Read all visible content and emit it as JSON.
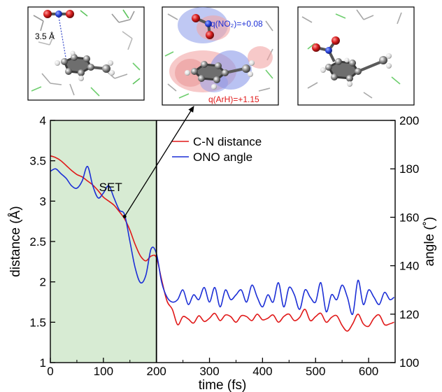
{
  "panels": [
    {
      "label": "3.5 Å"
    },
    {
      "label_top": "q(NO₂)=+0.08",
      "label_bottom": "q(ArH)=+1.15",
      "color_top": "#1c2fd6",
      "color_bottom": "#e01818"
    },
    {}
  ],
  "chart_data": {
    "type": "line",
    "xlabel": "time (fs)",
    "ylabel_left": "distance (Å)",
    "ylabel_right": "angle (˚)",
    "xlim": [
      0,
      650
    ],
    "ylim_left": [
      1,
      4
    ],
    "ylim_right": [
      100,
      200
    ],
    "xticks": [
      0,
      100,
      200,
      300,
      400,
      500,
      600
    ],
    "yticks_left": [
      1,
      1.5,
      2,
      2.5,
      3,
      3.5,
      4
    ],
    "yticks_right": [
      100,
      120,
      140,
      160,
      180,
      200
    ],
    "legend_position": "top-right",
    "shaded_region": {
      "x": [
        0,
        200
      ],
      "color": "#d7ebd3"
    },
    "annotation": {
      "text": "SET",
      "point_x": 140,
      "point_y": 2.81
    },
    "series": [
      {
        "name": "C-N distance",
        "axis": "left",
        "color": "#e01818",
        "x": [
          0,
          10,
          20,
          30,
          40,
          50,
          60,
          70,
          80,
          90,
          100,
          110,
          120,
          130,
          140,
          150,
          160,
          170,
          180,
          190,
          200,
          210,
          220,
          230,
          240,
          250,
          260,
          270,
          280,
          290,
          300,
          310,
          320,
          330,
          340,
          350,
          360,
          370,
          380,
          390,
          400,
          410,
          420,
          430,
          440,
          450,
          460,
          470,
          480,
          490,
          500,
          510,
          520,
          530,
          540,
          550,
          560,
          570,
          580,
          590,
          600,
          610,
          620,
          630,
          640,
          648
        ],
        "y": [
          3.56,
          3.54,
          3.5,
          3.44,
          3.38,
          3.33,
          3.3,
          3.25,
          3.2,
          3.13,
          3.05,
          3.0,
          2.95,
          2.87,
          2.78,
          2.64,
          2.46,
          2.32,
          2.26,
          2.32,
          2.3,
          2.02,
          1.76,
          1.66,
          1.47,
          1.57,
          1.54,
          1.49,
          1.58,
          1.51,
          1.55,
          1.61,
          1.52,
          1.59,
          1.57,
          1.5,
          1.58,
          1.57,
          1.52,
          1.6,
          1.53,
          1.55,
          1.59,
          1.5,
          1.57,
          1.6,
          1.52,
          1.56,
          1.66,
          1.52,
          1.57,
          1.61,
          1.5,
          1.56,
          1.58,
          1.46,
          1.39,
          1.48,
          1.6,
          1.48,
          1.45,
          1.55,
          1.59,
          1.47,
          1.48,
          1.5
        ]
      },
      {
        "name": "ONO angle",
        "axis": "right",
        "color": "#1c2fd6",
        "x": [
          0,
          10,
          20,
          30,
          40,
          50,
          60,
          70,
          80,
          90,
          100,
          110,
          120,
          130,
          140,
          150,
          160,
          170,
          180,
          190,
          200,
          210,
          220,
          230,
          240,
          250,
          260,
          270,
          280,
          290,
          300,
          310,
          320,
          330,
          340,
          350,
          360,
          370,
          380,
          390,
          400,
          410,
          420,
          430,
          440,
          450,
          460,
          470,
          480,
          490,
          500,
          510,
          520,
          530,
          540,
          550,
          560,
          570,
          580,
          590,
          600,
          610,
          620,
          630,
          640,
          648
        ],
        "y": [
          179,
          180,
          178,
          176,
          173,
          172,
          175,
          181,
          173,
          168,
          170,
          173,
          168,
          163,
          161,
          150,
          139,
          133,
          136,
          147,
          145,
          133,
          127,
          125,
          126,
          130,
          124,
          128,
          126,
          131,
          125,
          131,
          123,
          130,
          126,
          128,
          130,
          125,
          132,
          127,
          123,
          128,
          125,
          133,
          123,
          131,
          128,
          122,
          130,
          127,
          125,
          133,
          121,
          128,
          126,
          132,
          127,
          120,
          134,
          124,
          130,
          127,
          124,
          129,
          126,
          127
        ]
      }
    ]
  }
}
